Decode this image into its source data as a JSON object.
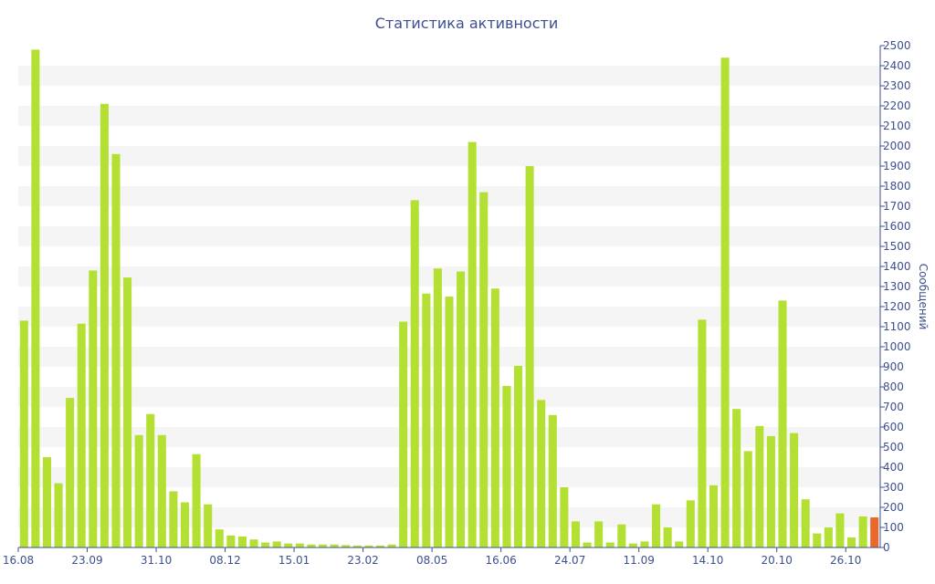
{
  "colors": {
    "bar": "#b4e033",
    "highlight_bar": "#e8692b",
    "band": "#f5f5f5",
    "axis": "#3d4f8f",
    "text": "#3d4f8f"
  },
  "chart_data": {
    "type": "bar",
    "title": "Статистика активности",
    "ylabel": "Сообщений",
    "xlabel": "",
    "ylim": [
      0,
      2500
    ],
    "y_axis_position": "right",
    "y_ticks": [
      0,
      100,
      200,
      300,
      400,
      500,
      600,
      700,
      800,
      900,
      1000,
      1100,
      1200,
      1300,
      1400,
      1500,
      1600,
      1700,
      1800,
      1900,
      2000,
      2100,
      2200,
      2300,
      2400,
      2500
    ],
    "x_tick_labels": [
      {
        "index": 0,
        "label": "16.08"
      },
      {
        "index": 6,
        "label": "23.09"
      },
      {
        "index": 12,
        "label": "31.10"
      },
      {
        "index": 18,
        "label": "08.12"
      },
      {
        "index": 24,
        "label": "15.01"
      },
      {
        "index": 30,
        "label": "23.02"
      },
      {
        "index": 36,
        "label": "08.05"
      },
      {
        "index": 42,
        "label": "16.06"
      },
      {
        "index": 48,
        "label": "24.07"
      },
      {
        "index": 54,
        "label": "11.09"
      },
      {
        "index": 60,
        "label": "14.10"
      },
      {
        "index": 66,
        "label": "20.10"
      },
      {
        "index": 72,
        "label": "26.10"
      }
    ],
    "grid": "alternating horizontal bands",
    "highlight_index": 74,
    "values": [
      1130,
      2480,
      450,
      320,
      745,
      1115,
      1380,
      2210,
      1960,
      1345,
      560,
      665,
      560,
      280,
      225,
      465,
      215,
      90,
      60,
      55,
      40,
      25,
      30,
      20,
      20,
      15,
      15,
      15,
      12,
      10,
      10,
      10,
      15,
      1125,
      1730,
      1265,
      1390,
      1250,
      1375,
      2020,
      1770,
      1290,
      805,
      905,
      1900,
      735,
      660,
      300,
      130,
      25,
      130,
      25,
      115,
      20,
      30,
      215,
      100,
      30,
      235,
      1135,
      310,
      2440,
      690,
      480,
      605,
      555,
      1230,
      570,
      240,
      70,
      100,
      170,
      50,
      155,
      150
    ]
  }
}
